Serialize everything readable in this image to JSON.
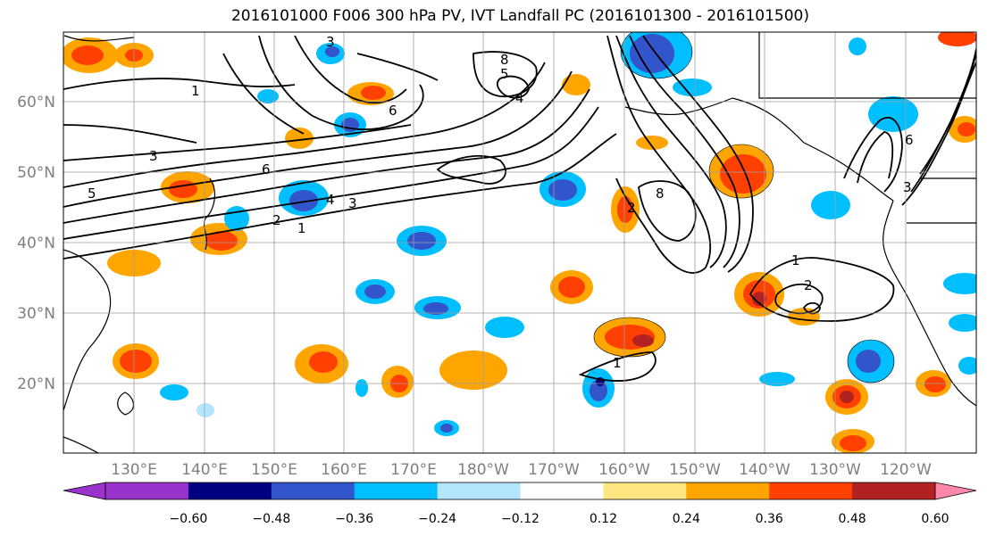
{
  "title": "2016101000 F006 300 hPa PV, IVT Landfall PC (2016101300 - 2016101500)",
  "lat_labels": [
    "60°N",
    "50°N",
    "40°N",
    "30°N",
    "20°N"
  ],
  "lon_labels": [
    "130°E",
    "140°E",
    "150°E",
    "160°E",
    "170°E",
    "180°W",
    "170°W",
    "160°W",
    "150°W",
    "140°W",
    "130°W",
    "120°W"
  ],
  "colorbar": {
    "colors": [
      "#9933cc",
      "#000080",
      "#3355cc",
      "#00bfff",
      "#b3e5fc",
      "#ffffff",
      "#ffe680",
      "#ffa500",
      "#ff4000",
      "#b22222",
      "#ff88aa"
    ],
    "labels": [
      "−0.60",
      "−0.48",
      "−0.36",
      "−0.24",
      "−0.12",
      "0.12",
      "0.24",
      "0.36",
      "0.48",
      "0.60"
    ]
  },
  "contour_labels": [
    "1",
    "2",
    "3",
    "4",
    "5",
    "6",
    "8",
    "1",
    "2",
    "3",
    "4",
    "5",
    "6",
    "8",
    "1",
    "2",
    "3",
    "1",
    "3",
    "6"
  ]
}
